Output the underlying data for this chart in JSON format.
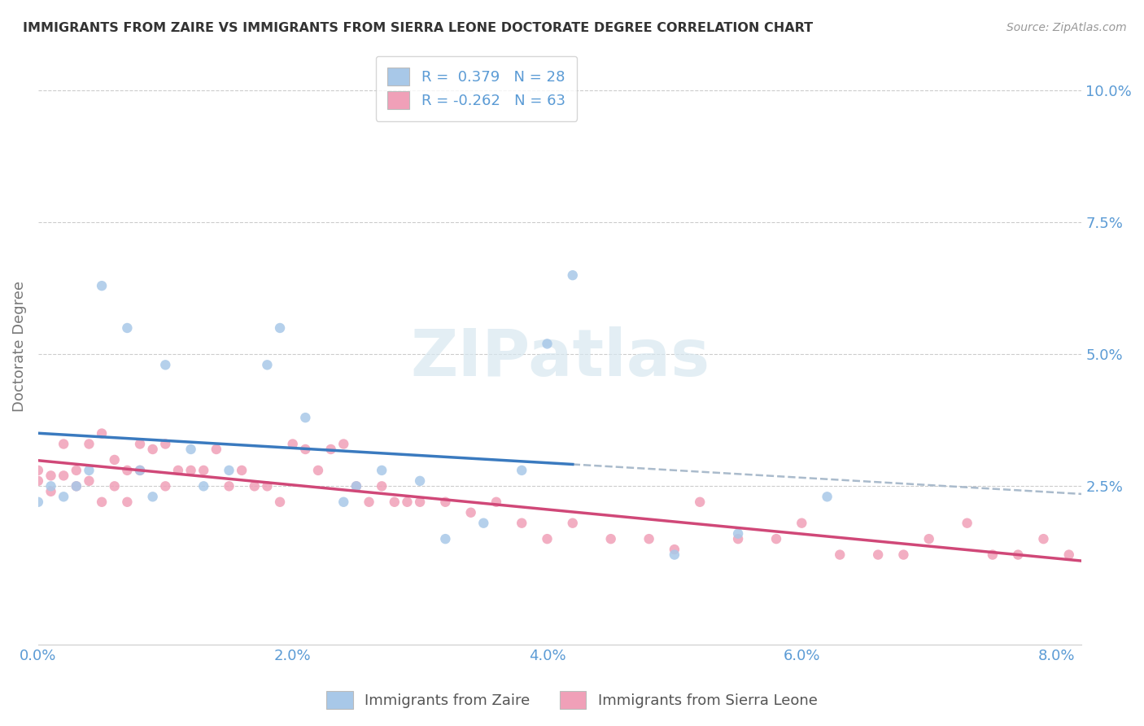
{
  "title": "IMMIGRANTS FROM ZAIRE VS IMMIGRANTS FROM SIERRA LEONE DOCTORATE DEGREE CORRELATION CHART",
  "source": "Source: ZipAtlas.com",
  "ylabel": "Doctorate Degree",
  "xlim": [
    0.0,
    0.082
  ],
  "ylim": [
    -0.005,
    0.108
  ],
  "zaire_R": 0.379,
  "zaire_N": 28,
  "sierra_leone_R": -0.262,
  "sierra_leone_N": 63,
  "zaire_color": "#a8c8e8",
  "sierra_leone_color": "#f0a0b8",
  "zaire_line_color": "#3a7abf",
  "sierra_leone_line_color": "#d04878",
  "dashed_line_color": "#aabbcc",
  "background_color": "#ffffff",
  "tick_color": "#5b9bd5",
  "title_color": "#333333",
  "source_color": "#999999",
  "ylabel_color": "#777777",
  "watermark_color": "#d8e8f0",
  "zaire_x": [
    0.0,
    0.001,
    0.002,
    0.003,
    0.004,
    0.005,
    0.007,
    0.008,
    0.009,
    0.01,
    0.012,
    0.013,
    0.015,
    0.018,
    0.019,
    0.021,
    0.024,
    0.025,
    0.027,
    0.03,
    0.032,
    0.035,
    0.038,
    0.04,
    0.042,
    0.05,
    0.055,
    0.062
  ],
  "zaire_y": [
    0.022,
    0.025,
    0.023,
    0.025,
    0.028,
    0.063,
    0.055,
    0.028,
    0.023,
    0.048,
    0.032,
    0.025,
    0.028,
    0.048,
    0.055,
    0.038,
    0.022,
    0.025,
    0.028,
    0.026,
    0.015,
    0.018,
    0.028,
    0.052,
    0.065,
    0.012,
    0.016,
    0.023
  ],
  "sierra_leone_x": [
    0.0,
    0.0,
    0.001,
    0.001,
    0.002,
    0.002,
    0.003,
    0.003,
    0.004,
    0.004,
    0.005,
    0.005,
    0.006,
    0.006,
    0.007,
    0.007,
    0.008,
    0.008,
    0.009,
    0.01,
    0.01,
    0.011,
    0.012,
    0.013,
    0.014,
    0.015,
    0.016,
    0.017,
    0.018,
    0.019,
    0.02,
    0.021,
    0.022,
    0.023,
    0.024,
    0.025,
    0.026,
    0.027,
    0.028,
    0.029,
    0.03,
    0.032,
    0.034,
    0.036,
    0.038,
    0.04,
    0.042,
    0.045,
    0.048,
    0.05,
    0.052,
    0.055,
    0.058,
    0.06,
    0.063,
    0.066,
    0.068,
    0.07,
    0.073,
    0.075,
    0.077,
    0.079,
    0.081
  ],
  "sierra_leone_y": [
    0.026,
    0.028,
    0.024,
    0.027,
    0.027,
    0.033,
    0.025,
    0.028,
    0.026,
    0.033,
    0.022,
    0.035,
    0.025,
    0.03,
    0.022,
    0.028,
    0.028,
    0.033,
    0.032,
    0.025,
    0.033,
    0.028,
    0.028,
    0.028,
    0.032,
    0.025,
    0.028,
    0.025,
    0.025,
    0.022,
    0.033,
    0.032,
    0.028,
    0.032,
    0.033,
    0.025,
    0.022,
    0.025,
    0.022,
    0.022,
    0.022,
    0.022,
    0.02,
    0.022,
    0.018,
    0.015,
    0.018,
    0.015,
    0.015,
    0.013,
    0.022,
    0.015,
    0.015,
    0.018,
    0.012,
    0.012,
    0.012,
    0.015,
    0.018,
    0.012,
    0.012,
    0.015,
    0.012
  ]
}
